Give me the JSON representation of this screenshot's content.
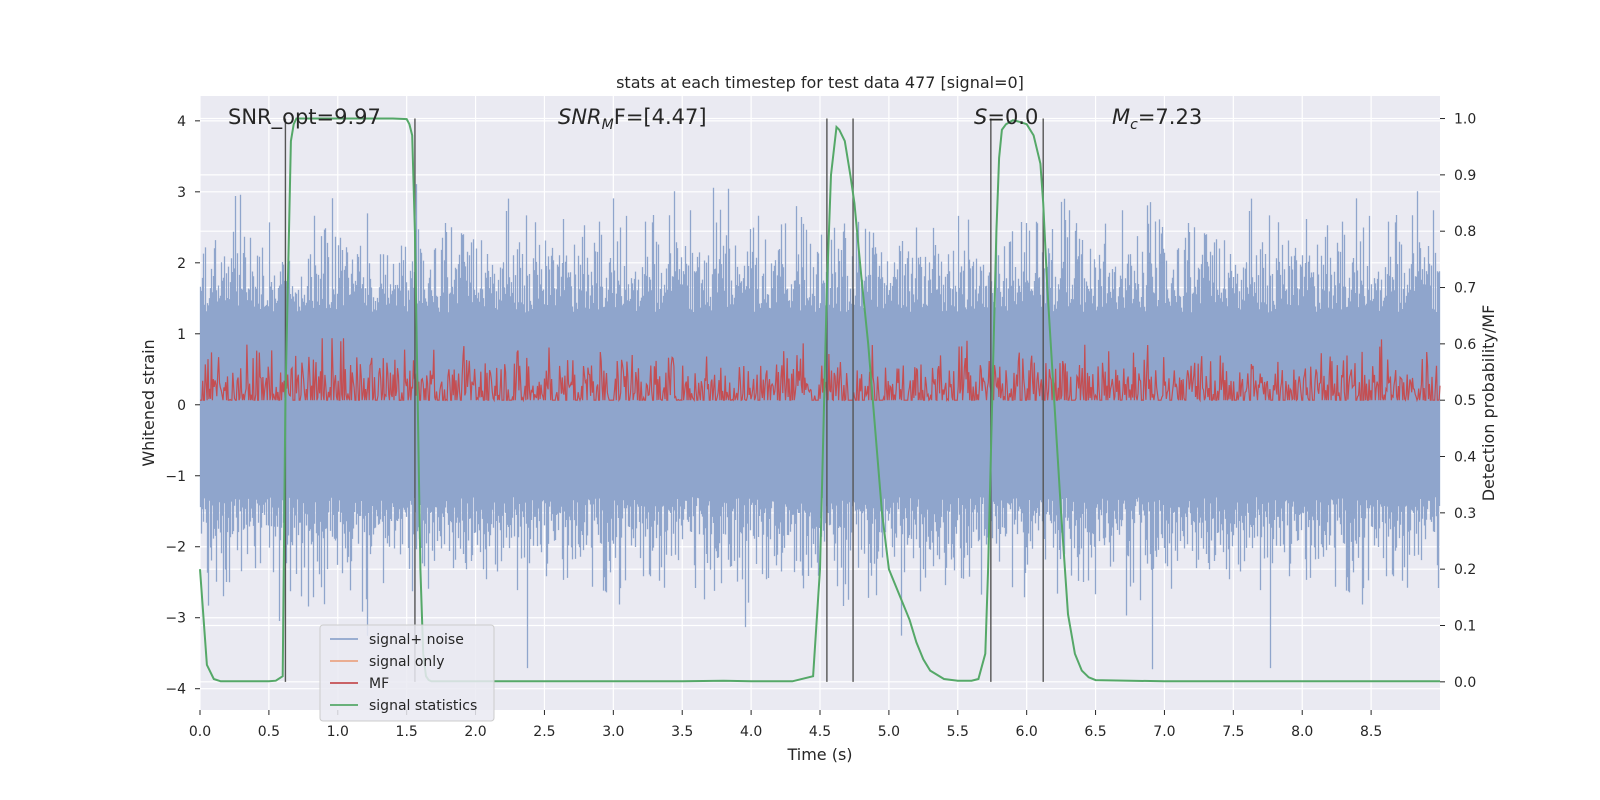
{
  "chart_data": {
    "type": "line",
    "title": "stats at each timestep for test data 477 [signal=0]",
    "xlabel": "Time (s)",
    "ylabel": "Whitened strain",
    "ylabel_right": "Detection probability/MF",
    "xlim": [
      0.0,
      9.0
    ],
    "ylim": [
      -4.3,
      4.35
    ],
    "ylim_right": [
      -0.05,
      1.04
    ],
    "xticks": [
      "0.0",
      "0.5",
      "1.0",
      "1.5",
      "2.0",
      "2.5",
      "3.0",
      "3.5",
      "4.0",
      "4.5",
      "5.0",
      "5.5",
      "6.0",
      "6.5",
      "7.0",
      "7.5",
      "8.0",
      "8.5"
    ],
    "yticks": [
      "4",
      "3",
      "2",
      "1",
      "0",
      "−1",
      "−2",
      "−3",
      "−4"
    ],
    "yticks_right": [
      "1.0",
      "0.9",
      "0.8",
      "0.7",
      "0.6",
      "0.5",
      "0.4",
      "0.3",
      "0.2",
      "0.1",
      "0.0"
    ],
    "grid": true,
    "legend_position": "lower-left",
    "annotations": {
      "snr_opt": "SNR_opt=9.97",
      "snr_mf_main": "SNR",
      "snr_mf_sub": "M",
      "snr_mf_rest": "F=[4.47]",
      "s_main": "S",
      "s_rest": "=0.0",
      "mc_main": "M",
      "mc_sub": "c",
      "mc_rest": "=7.23"
    },
    "series": [
      {
        "name": "signal+ noise",
        "color": "#8fa5cc",
        "description_range": [
          -3.8,
          3.4
        ]
      },
      {
        "name": "signal only",
        "color": "#eaa484"
      },
      {
        "name": "MF",
        "color": "#c44e52",
        "axis": "right",
        "description_range": [
          0.0,
          0.6
        ]
      },
      {
        "name": "signal statistics",
        "color": "#55a868",
        "axis": "right",
        "x": [
          0.0,
          0.05,
          0.1,
          0.15,
          0.2,
          0.25,
          0.3,
          0.35,
          0.4,
          0.45,
          0.5,
          0.55,
          0.6,
          0.62,
          0.66,
          0.68,
          0.7,
          0.72,
          0.74,
          0.76,
          0.8,
          0.85,
          0.9,
          1.0,
          1.1,
          1.2,
          1.3,
          1.4,
          1.5,
          1.52,
          1.54,
          1.56,
          1.58,
          1.6,
          1.62,
          1.64,
          1.66,
          1.68,
          1.7,
          1.8,
          2.0,
          2.5,
          3.0,
          3.5,
          3.8,
          4.0,
          4.3,
          4.45,
          4.5,
          4.55,
          4.58,
          4.62,
          4.64,
          4.68,
          4.72,
          4.75,
          4.8,
          4.85,
          4.9,
          4.95,
          5.0,
          5.05,
          5.1,
          5.15,
          5.2,
          5.25,
          5.3,
          5.4,
          5.5,
          5.6,
          5.65,
          5.7,
          5.72,
          5.75,
          5.78,
          5.8,
          5.82,
          5.85,
          5.9,
          5.95,
          6.0,
          6.05,
          6.1,
          6.12,
          6.15,
          6.2,
          6.25,
          6.3,
          6.35,
          6.4,
          6.45,
          6.5,
          7.0,
          8.0,
          9.0
        ],
        "y": [
          0.2,
          0.03,
          0.005,
          0.001,
          0.001,
          0.001,
          0.001,
          0.001,
          0.001,
          0.001,
          0.001,
          0.002,
          0.01,
          0.5,
          0.96,
          0.99,
          1.0,
          1.0,
          1.0,
          1.0,
          1.0,
          1.0,
          1.0,
          1.0,
          1.0,
          1.0,
          1.0,
          1.0,
          0.999,
          0.99,
          0.97,
          0.8,
          0.5,
          0.2,
          0.05,
          0.01,
          0.003,
          0.001,
          0.001,
          0.001,
          0.001,
          0.001,
          0.001,
          0.001,
          0.002,
          0.001,
          0.001,
          0.01,
          0.2,
          0.7,
          0.9,
          0.985,
          0.98,
          0.96,
          0.9,
          0.85,
          0.72,
          0.6,
          0.45,
          0.3,
          0.2,
          0.17,
          0.14,
          0.11,
          0.07,
          0.04,
          0.02,
          0.005,
          0.002,
          0.002,
          0.005,
          0.05,
          0.2,
          0.5,
          0.8,
          0.93,
          0.98,
          0.99,
          0.997,
          0.994,
          0.99,
          0.97,
          0.92,
          0.85,
          0.7,
          0.5,
          0.3,
          0.12,
          0.05,
          0.02,
          0.008,
          0.003,
          0.001,
          0.001,
          0.001
        ]
      }
    ],
    "vertical_lines_x": [
      0.62,
      1.56,
      4.55,
      4.74,
      5.74,
      6.12
    ]
  }
}
